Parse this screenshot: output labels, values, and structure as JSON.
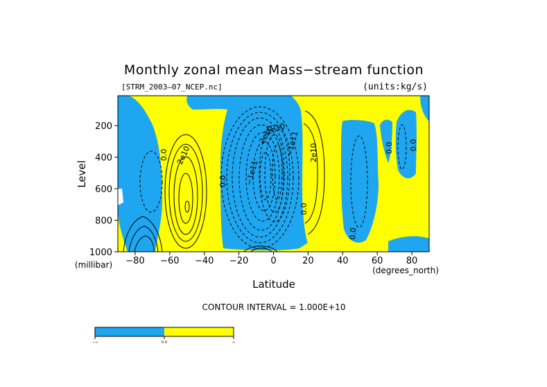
{
  "chart_data": {
    "type": "contour",
    "title": "Monthly zonal mean Mass−stream function",
    "file_label": "[STRM_2003–07_NCEP.nc]",
    "units_label": "(units:kg/s)",
    "xlabel": "Latitude",
    "xunit": "(degrees_north)",
    "ylabel": "Level",
    "yunit": "(millibar)",
    "xlim": [
      -90,
      90
    ],
    "ylim": [
      1000,
      10
    ],
    "x_ticks": [
      -80,
      -60,
      -40,
      -20,
      0,
      20,
      40,
      60,
      80
    ],
    "x_tick_labels": [
      "−80",
      "−60",
      "−40",
      "−20",
      "0",
      "20",
      "40",
      "60",
      "80"
    ],
    "y_ticks": [
      200,
      400,
      600,
      800,
      1000
    ],
    "y_tick_labels": [
      "200",
      "400",
      "600",
      "800",
      "1000"
    ],
    "contour_interval_text": "CONTOUR INTERVAL = 1.000E+10",
    "contour_labels": [
      "0.0",
      "2e10",
      "0.0",
      "−1e11",
      "−1e11",
      "2e10",
      "0.0",
      "0.0",
      "0.0",
      "0.0",
      "2e10",
      "1e10"
    ],
    "fill_colors": {
      "negative": "#1ea7f0",
      "positive": "#ffff00"
    },
    "colorbar": {
      "tick_labels": [
        "−∞",
        "0.0",
        "∞"
      ]
    }
  }
}
